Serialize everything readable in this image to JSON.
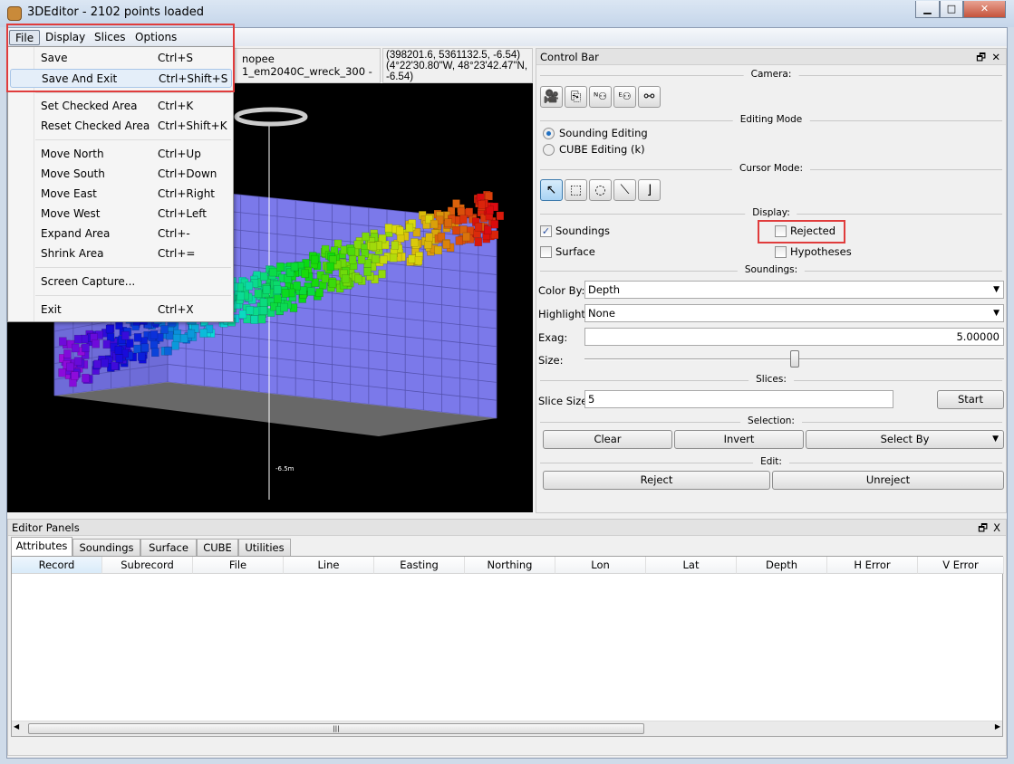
{
  "window": {
    "title": "3DEditor - 2102 points loaded",
    "minimize": "▁",
    "maximize": "□",
    "close": "✕"
  },
  "menubar": [
    "File",
    "Display",
    "Slices",
    "Options"
  ],
  "file_menu": [
    {
      "label": "Save",
      "shortcut": "Ctrl+S"
    },
    {
      "label": "Save And Exit",
      "shortcut": "Ctrl+Shift+S"
    },
    {
      "label": "Set Checked Area",
      "shortcut": "Ctrl+K"
    },
    {
      "label": "Reset Checked Area",
      "shortcut": "Ctrl+Shift+K"
    },
    {
      "label": "Move North",
      "shortcut": "Ctrl+Up"
    },
    {
      "label": "Move South",
      "shortcut": "Ctrl+Down"
    },
    {
      "label": "Move East",
      "shortcut": "Ctrl+Right"
    },
    {
      "label": "Move West",
      "shortcut": "Ctrl+Left"
    },
    {
      "label": "Expand Area",
      "shortcut": "Ctrl+-"
    },
    {
      "label": "Shrink Area",
      "shortcut": "Ctrl+="
    },
    {
      "label": "Screen Capture...",
      "shortcut": ""
    },
    {
      "label": "Exit",
      "shortcut": "Ctrl+X"
    }
  ],
  "info": {
    "file_line1": "nopee",
    "file_line2": "1_em2040C_wreck_300 -",
    "coord_line1": "(398201.6, 5361132.5, -6.54)",
    "coord_line2": "(4°22'30.80\"W, 48°23'42.47\"N,",
    "coord_line3": "-6.54)"
  },
  "control_bar": {
    "title": "Control Bar",
    "float": "🗗",
    "close": "✕",
    "camera_label": "Camera:",
    "camera_icons": [
      "camera-rotate-icon",
      "camera-side-icon",
      "camera-north-icon",
      "camera-east-icon",
      "camera-reset-icon"
    ],
    "editing_mode_label": "Editing Mode",
    "editing_modes": [
      {
        "label": "Sounding Editing",
        "selected": true
      },
      {
        "label": "CUBE Editing (k)",
        "selected": false
      }
    ],
    "cursor_mode_label": "Cursor Mode:",
    "cursor_modes": [
      "arrow-icon",
      "rectangle-select-icon",
      "lasso-icon",
      "line-icon",
      "corner-icon"
    ],
    "display_label": "Display:",
    "display": {
      "soundings": {
        "label": "Soundings",
        "checked": true
      },
      "rejected": {
        "label": "Rejected",
        "checked": false
      },
      "surface": {
        "label": "Surface",
        "checked": false
      },
      "hypotheses": {
        "label": "Hypotheses",
        "checked": false
      }
    },
    "soundings_label": "Soundings:",
    "color_by_label": "Color By:",
    "color_by": "Depth",
    "highlight_label": "Highlight:",
    "highlight": "None",
    "exag_label": "Exag:",
    "exag": "5.00000",
    "size_label": "Size:",
    "size_level": 0.5,
    "slices_label": "Slices:",
    "slice_size_label": "Slice Size:",
    "slice_size": "5",
    "start": "Start",
    "selection_label": "Selection:",
    "clear": "Clear",
    "invert": "Invert",
    "select_by": "Select By",
    "edit_label": "Edit:",
    "reject": "Reject",
    "unreject": "Unreject"
  },
  "editor_panels": {
    "title": "Editor Panels",
    "float": "🗗",
    "close": "X",
    "tabs": [
      "Attributes",
      "Soundings",
      "Surface",
      "CUBE",
      "Utilities"
    ],
    "active_tab": "Attributes",
    "columns": [
      "Record",
      "Subrecord",
      "File",
      "Line",
      "Easting",
      "Northing",
      "Lon",
      "Lat",
      "Depth",
      "H Error",
      "V Error"
    ],
    "scroll_grip": "|||"
  },
  "view_labels": {
    "axis_bottom": "-6.5m"
  },
  "colors": {
    "highlight_box": "#e03c3c",
    "view_bg": "#000000",
    "grid_plane": "#7a78e8"
  }
}
